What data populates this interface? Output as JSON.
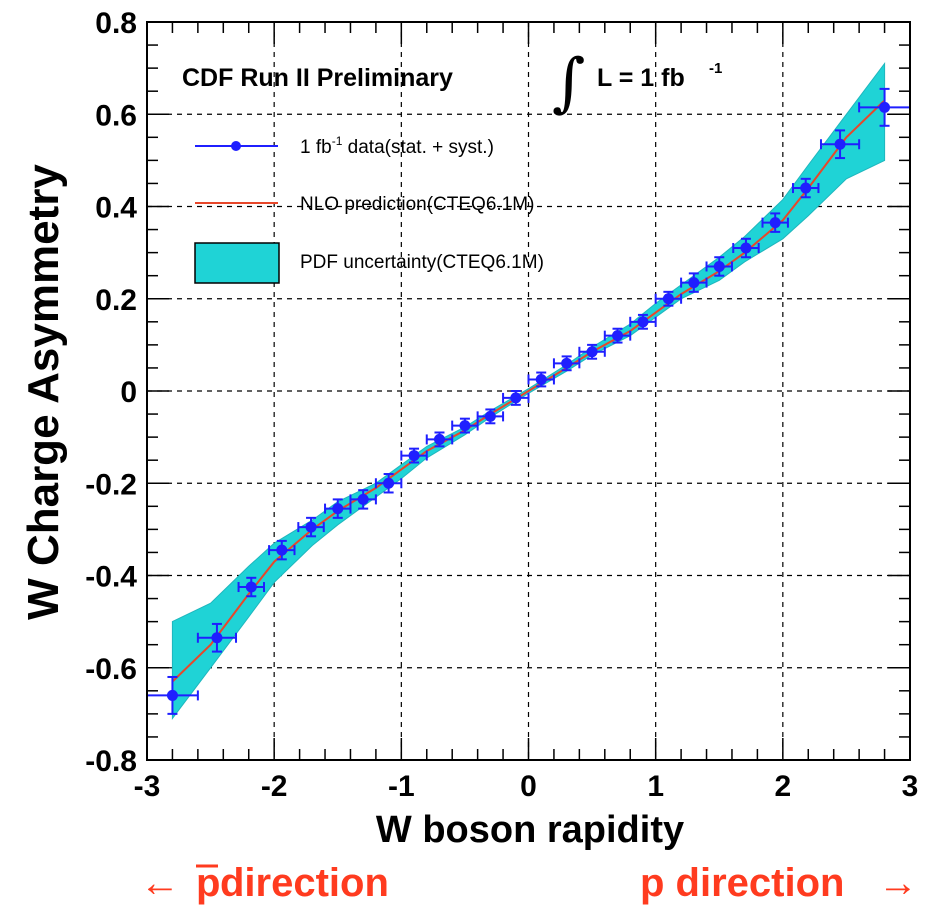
{
  "chart_data": {
    "type": "line",
    "title": "CDF Run II Preliminary",
    "luminosity": {
      "integral": "∫",
      "text": "L = 1 fb",
      "sup": "-1"
    },
    "xlabel": "W boson rapidity",
    "ylabel": "W Charge Asymmetry",
    "xlim": [
      -3,
      3
    ],
    "ylim": [
      -0.8,
      0.8
    ],
    "x_ticks": [
      "-3",
      "-2",
      "-1",
      "0",
      "1",
      "2",
      "3"
    ],
    "y_ticks": [
      "-0.8",
      "-0.6",
      "-0.4",
      "-0.2",
      "0",
      "0.2",
      "0.4",
      "0.6",
      "0.8"
    ],
    "grid": true,
    "legend": {
      "data_pre": "1 fb",
      "data_sup": "-1",
      "data_post": " data(stat. + syst.)",
      "nlo": "NLO prediction(CTEQ6.1M)",
      "band": "PDF uncertainty(CTEQ6.1M)"
    },
    "directions": {
      "left_arrow": "←",
      "left_p": "p",
      "left_text": " direction",
      "right_text": "p direction ",
      "right_arrow": "→"
    },
    "colors": {
      "data": "#1f1fff",
      "nlo": "#e8472a",
      "band": "#1fd3d6",
      "band_edge": "#1fb6bd",
      "direction": "#ff3b1f"
    },
    "series": [
      {
        "name": "1 fb-1 data(stat. + syst.)",
        "x": [
          -2.8,
          -2.45,
          -2.18,
          -1.94,
          -1.71,
          -1.5,
          -1.3,
          -1.1,
          -0.9,
          -0.7,
          -0.5,
          -0.3,
          -0.1,
          0.1,
          0.3,
          0.5,
          0.7,
          0.9,
          1.1,
          1.3,
          1.5,
          1.71,
          1.94,
          2.18,
          2.45,
          2.8
        ],
        "y": [
          -0.66,
          -0.535,
          -0.425,
          -0.345,
          -0.295,
          -0.255,
          -0.235,
          -0.2,
          -0.14,
          -0.105,
          -0.075,
          -0.055,
          -0.015,
          0.025,
          0.06,
          0.085,
          0.12,
          0.15,
          0.2,
          0.235,
          0.27,
          0.31,
          0.365,
          0.44,
          0.535,
          0.615
        ],
        "xerr": [
          0.2,
          0.15,
          0.1,
          0.1,
          0.1,
          0.1,
          0.1,
          0.1,
          0.1,
          0.1,
          0.1,
          0.1,
          0.1,
          0.1,
          0.1,
          0.1,
          0.1,
          0.1,
          0.1,
          0.1,
          0.1,
          0.1,
          0.1,
          0.1,
          0.15,
          0.2
        ],
        "yerr": [
          0.04,
          0.03,
          0.02,
          0.02,
          0.02,
          0.02,
          0.02,
          0.02,
          0.015,
          0.015,
          0.015,
          0.015,
          0.015,
          0.015,
          0.015,
          0.015,
          0.015,
          0.015,
          0.015,
          0.02,
          0.02,
          0.02,
          0.02,
          0.02,
          0.03,
          0.04
        ]
      },
      {
        "name": "NLO prediction(CTEQ6.1M)",
        "x": [
          -2.8,
          -2.5,
          -2.2,
          -2.0,
          -1.7,
          -1.5,
          -1.2,
          -1.0,
          -0.8,
          -0.5,
          -0.3,
          0.0,
          0.3,
          0.5,
          0.8,
          1.0,
          1.2,
          1.5,
          1.7,
          2.0,
          2.2,
          2.5,
          2.8
        ],
        "y": [
          -0.63,
          -0.55,
          -0.44,
          -0.37,
          -0.3,
          -0.26,
          -0.21,
          -0.17,
          -0.13,
          -0.085,
          -0.05,
          0.0,
          0.05,
          0.085,
          0.13,
          0.17,
          0.21,
          0.26,
          0.3,
          0.37,
          0.44,
          0.55,
          0.63
        ]
      },
      {
        "name": "PDF uncertainty(CTEQ6.1M)",
        "x": [
          -2.8,
          -2.5,
          -2.2,
          -2.0,
          -1.7,
          -1.5,
          -1.2,
          -1.0,
          -0.8,
          -0.5,
          -0.3,
          0.0,
          0.3,
          0.5,
          0.8,
          1.0,
          1.2,
          1.5,
          1.7,
          2.0,
          2.2,
          2.5,
          2.8
        ],
        "upper": [
          -0.5,
          -0.46,
          -0.38,
          -0.33,
          -0.28,
          -0.24,
          -0.2,
          -0.16,
          -0.12,
          -0.078,
          -0.043,
          0.005,
          0.057,
          0.095,
          0.145,
          0.19,
          0.23,
          0.29,
          0.335,
          0.415,
          0.49,
          0.6,
          0.71
        ],
        "lower": [
          -0.71,
          -0.6,
          -0.49,
          -0.415,
          -0.335,
          -0.29,
          -0.23,
          -0.19,
          -0.145,
          -0.095,
          -0.057,
          -0.005,
          0.043,
          0.078,
          0.12,
          0.16,
          0.2,
          0.24,
          0.28,
          0.33,
          0.38,
          0.46,
          0.5
        ]
      }
    ]
  }
}
